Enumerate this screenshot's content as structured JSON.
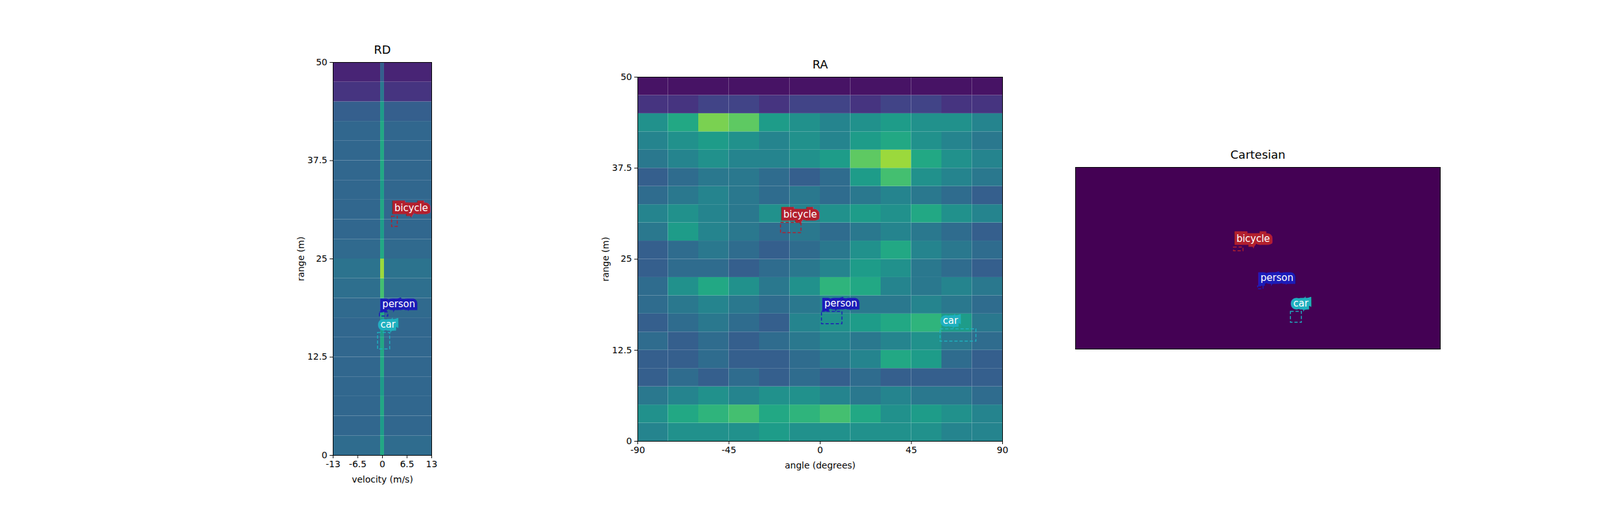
{
  "chart_data": [
    {
      "type": "heatmap",
      "title": "RD",
      "xlabel": "velocity (m/s)",
      "ylabel": "range (m)",
      "xlim": [
        -13,
        13
      ],
      "xticks": [
        -13,
        -6.5,
        0,
        6.5,
        13
      ],
      "ylim": [
        0,
        50
      ],
      "yticks": [
        0,
        12.5,
        25,
        37.5,
        50
      ],
      "cells": {
        "x_edges": [
          -13,
          -0.5,
          0.5,
          13
        ],
        "y_edges": [
          0,
          2.5,
          5,
          7.5,
          10,
          12.5,
          15,
          17.5,
          20,
          22.5,
          25,
          27.5,
          30,
          32.5,
          35,
          37.5,
          40,
          42.5,
          45,
          47.5,
          50
        ],
        "z": [
          [
            0.35,
            0.6,
            0.35
          ],
          [
            0.33,
            0.55,
            0.33
          ],
          [
            0.33,
            0.6,
            0.33
          ],
          [
            0.33,
            0.55,
            0.33
          ],
          [
            0.33,
            0.6,
            0.33
          ],
          [
            0.33,
            0.6,
            0.33
          ],
          [
            0.33,
            0.55,
            0.33
          ],
          [
            0.34,
            0.6,
            0.34
          ],
          [
            0.36,
            0.7,
            0.36
          ],
          [
            0.38,
            0.85,
            0.38
          ],
          [
            0.34,
            0.6,
            0.34
          ],
          [
            0.33,
            0.55,
            0.33
          ],
          [
            0.33,
            0.6,
            0.33
          ],
          [
            0.33,
            0.55,
            0.33
          ],
          [
            0.33,
            0.6,
            0.33
          ],
          [
            0.33,
            0.6,
            0.33
          ],
          [
            0.33,
            0.6,
            0.33
          ],
          [
            0.3,
            0.55,
            0.3
          ],
          [
            0.15,
            0.4,
            0.15
          ],
          [
            0.1,
            0.3,
            0.1
          ]
        ],
        "zlim": [
          0,
          1
        ]
      },
      "objects": [
        {
          "label": "bicycle",
          "color": "#b2202e",
          "x": [
            2.5,
            4
          ],
          "y": [
            29.1,
            30.4
          ]
        },
        {
          "label": "person",
          "color": "#1c1cb8",
          "x": [
            -0.7,
            1.5
          ],
          "y": [
            17.7,
            18.2
          ]
        },
        {
          "label": "car",
          "color": "#1fb0bf",
          "x": [
            -1.2,
            2
          ],
          "y": [
            13.5,
            15.6
          ]
        }
      ]
    },
    {
      "type": "heatmap",
      "title": "RA",
      "xlabel": "angle (degrees)",
      "ylabel": "range (m)",
      "xlim": [
        -90,
        90
      ],
      "xticks": [
        -90,
        -45,
        0,
        45,
        90
      ],
      "ylim": [
        0,
        50
      ],
      "yticks": [
        0,
        12.5,
        25,
        37.5,
        50
      ],
      "cells": {
        "x_edges": [
          -90,
          -75,
          -60,
          -45,
          -30,
          -15,
          0,
          15,
          30,
          45,
          60,
          75,
          90
        ],
        "y_edges": [
          0,
          2.5,
          5,
          7.5,
          10,
          12.5,
          15,
          17.5,
          20,
          22.5,
          25,
          27.5,
          30,
          32.5,
          35,
          37.5,
          40,
          42.5,
          45,
          47.5,
          50
        ],
        "z": [
          [
            0.45,
            0.5,
            0.5,
            0.5,
            0.55,
            0.5,
            0.5,
            0.5,
            0.5,
            0.5,
            0.45,
            0.45
          ],
          [
            0.5,
            0.6,
            0.65,
            0.7,
            0.6,
            0.65,
            0.7,
            0.6,
            0.5,
            0.55,
            0.5,
            0.45
          ],
          [
            0.4,
            0.45,
            0.5,
            0.45,
            0.5,
            0.5,
            0.45,
            0.4,
            0.45,
            0.4,
            0.4,
            0.35
          ],
          [
            0.3,
            0.35,
            0.3,
            0.35,
            0.3,
            0.35,
            0.3,
            0.35,
            0.3,
            0.3,
            0.3,
            0.3
          ],
          [
            0.3,
            0.3,
            0.35,
            0.3,
            0.3,
            0.35,
            0.4,
            0.45,
            0.6,
            0.55,
            0.35,
            0.3
          ],
          [
            0.35,
            0.3,
            0.35,
            0.3,
            0.35,
            0.4,
            0.45,
            0.4,
            0.45,
            0.5,
            0.4,
            0.35
          ],
          [
            0.3,
            0.35,
            0.4,
            0.35,
            0.3,
            0.45,
            0.5,
            0.55,
            0.6,
            0.65,
            0.55,
            0.4
          ],
          [
            0.35,
            0.4,
            0.45,
            0.4,
            0.35,
            0.4,
            0.45,
            0.4,
            0.4,
            0.45,
            0.4,
            0.35
          ],
          [
            0.35,
            0.5,
            0.6,
            0.5,
            0.4,
            0.5,
            0.65,
            0.6,
            0.45,
            0.4,
            0.45,
            0.4
          ],
          [
            0.3,
            0.35,
            0.35,
            0.3,
            0.35,
            0.4,
            0.45,
            0.55,
            0.5,
            0.4,
            0.35,
            0.3
          ],
          [
            0.3,
            0.35,
            0.4,
            0.35,
            0.3,
            0.35,
            0.4,
            0.5,
            0.6,
            0.45,
            0.4,
            0.35
          ],
          [
            0.4,
            0.55,
            0.45,
            0.4,
            0.35,
            0.4,
            0.35,
            0.4,
            0.45,
            0.4,
            0.35,
            0.3
          ],
          [
            0.45,
            0.5,
            0.45,
            0.4,
            0.5,
            0.45,
            0.5,
            0.55,
            0.5,
            0.6,
            0.5,
            0.45
          ],
          [
            0.35,
            0.4,
            0.45,
            0.4,
            0.35,
            0.4,
            0.35,
            0.4,
            0.45,
            0.4,
            0.35,
            0.3
          ],
          [
            0.3,
            0.35,
            0.4,
            0.4,
            0.35,
            0.3,
            0.35,
            0.55,
            0.7,
            0.5,
            0.45,
            0.4
          ],
          [
            0.4,
            0.45,
            0.5,
            0.45,
            0.45,
            0.5,
            0.55,
            0.75,
            0.85,
            0.6,
            0.5,
            0.45
          ],
          [
            0.45,
            0.5,
            0.55,
            0.5,
            0.45,
            0.5,
            0.45,
            0.55,
            0.6,
            0.5,
            0.45,
            0.4
          ],
          [
            0.5,
            0.6,
            0.8,
            0.75,
            0.55,
            0.5,
            0.45,
            0.5,
            0.55,
            0.5,
            0.5,
            0.45
          ],
          [
            0.15,
            0.15,
            0.2,
            0.2,
            0.15,
            0.2,
            0.2,
            0.15,
            0.2,
            0.2,
            0.15,
            0.15
          ],
          [
            0.05,
            0.05,
            0.05,
            0.05,
            0.05,
            0.05,
            0.05,
            0.05,
            0.05,
            0.05,
            0.05,
            0.05
          ]
        ],
        "zlim": [
          0,
          1
        ]
      },
      "objects": [
        {
          "label": "bicycle",
          "color": "#b2202e",
          "x": [
            -19.4,
            -9.3
          ],
          "y": [
            28.6,
            30
          ]
        },
        {
          "label": "person",
          "color": "#1c1cb8",
          "x": [
            0.8,
            10.9
          ],
          "y": [
            16.1,
            17.8
          ]
        },
        {
          "label": "car",
          "color": "#1fb0bf",
          "x": [
            59.3,
            77
          ],
          "y": [
            13.7,
            15.4
          ]
        }
      ]
    },
    {
      "type": "detections",
      "title": "Cartesian",
      "color": "#440154",
      "tick_labels": false,
      "xlim": [
        -50,
        50
      ],
      "ylim": [
        0,
        50
      ],
      "objects": [
        {
          "label": "bicycle",
          "color": "#b2202e",
          "x": [
            -6.6,
            -4
          ],
          "y": [
            27,
            28
          ]
        },
        {
          "label": "person",
          "color": "#1c1cb8",
          "x": [
            0,
            1.5
          ],
          "y": [
            16.5,
            17.3
          ]
        },
        {
          "label": "car",
          "color": "#1fb0bf",
          "x": [
            9,
            12
          ],
          "y": [
            7.3,
            10.3
          ]
        }
      ]
    }
  ]
}
